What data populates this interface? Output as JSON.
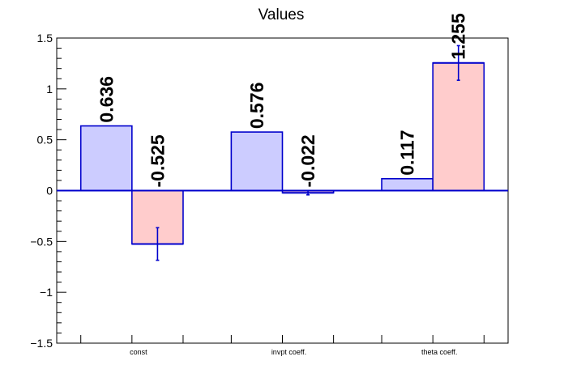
{
  "chart_data": {
    "type": "bar",
    "title": "Values",
    "xlabel": "",
    "ylabel": "",
    "categories": [
      "const",
      "invpt coeff.",
      "theta coeff."
    ],
    "ylim": [
      -1.5,
      1.5
    ],
    "y_ticks": [
      -1.5,
      -1,
      -0.5,
      0,
      0.5,
      1,
      1.5
    ],
    "y_tick_labels": [
      "−1.5",
      "−1",
      "−0.5",
      "0",
      "0.5",
      "1",
      "1.5"
    ],
    "grid": false,
    "legend": "none",
    "series": [
      {
        "values": [
          0.636,
          0.576,
          0.117
        ],
        "labels": [
          "0.636",
          "0.576",
          "0.117"
        ],
        "errors": null,
        "fill": "#ccccff"
      },
      {
        "values": [
          -0.525,
          -0.022,
          1.255
        ],
        "labels": [
          "-0.525",
          "-0.022",
          "1.255"
        ],
        "errors": [
          0.16,
          0.02,
          0.17
        ],
        "fill": "#ffcccc"
      }
    ],
    "colors": {
      "edge": "#0000cc",
      "axis": "#000000"
    }
  }
}
